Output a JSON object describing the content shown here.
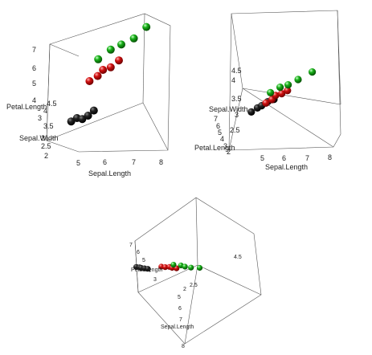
{
  "colors": {
    "series": [
      "#101010",
      "#c81010",
      "#10a010"
    ],
    "highlight": "#ffffff",
    "box": "#555555"
  },
  "chart_data": [
    {
      "type": "scatter",
      "axes": [
        "Sepal.Length",
        "Petal.Length",
        "Sepal.Width"
      ],
      "axis_labels": {
        "x": "Sepal.Length",
        "y": "Petal.Length",
        "z": "Sepal.Width"
      },
      "xticks": [
        "5",
        "6",
        "7",
        "8"
      ],
      "yticks": [
        "3",
        "4",
        "5",
        "6",
        "7"
      ],
      "zticks": [
        "2",
        "2.5",
        "3",
        "3.5",
        "4",
        "4.5"
      ],
      "series": [
        {
          "points": [
            [
              4.6,
              1.4,
              3.1
            ],
            [
              4.8,
              1.5,
              3.3
            ],
            [
              5.0,
              1.4,
              3.4
            ],
            [
              5.2,
              1.5,
              3.6
            ],
            [
              5.4,
              1.7,
              3.8
            ]
          ]
        },
        {
          "points": [
            [
              5.5,
              4.0,
              2.4
            ],
            [
              5.8,
              4.2,
              2.6
            ],
            [
              6.0,
              4.5,
              2.7
            ],
            [
              6.3,
              4.6,
              2.8
            ],
            [
              6.6,
              4.9,
              3.0
            ]
          ]
        },
        {
          "points": [
            [
              5.8,
              5.1,
              2.7
            ],
            [
              6.3,
              5.6,
              2.8
            ],
            [
              6.7,
              5.8,
              3.0
            ],
            [
              7.2,
              6.1,
              3.1
            ],
            [
              7.7,
              6.7,
              3.2
            ]
          ]
        }
      ]
    },
    {
      "type": "scatter",
      "axes": [
        "Sepal.Length",
        "Sepal.Width",
        "Petal.Length"
      ],
      "axis_labels": {
        "x": "Sepal.Length",
        "y": "Sepal.Width",
        "z": "Petal.Length"
      },
      "xticks": [
        "5",
        "6",
        "7",
        "8"
      ],
      "yticks": [
        "2.5",
        "3",
        "3.5",
        "4",
        "4.5"
      ],
      "zticks": [
        "2",
        "3",
        "4",
        "5",
        "6",
        "7"
      ],
      "series": [
        {
          "points": [
            [
              4.6,
              3.1,
              1.4
            ],
            [
              4.9,
              3.4,
              1.5
            ],
            [
              5.1,
              3.6,
              1.5
            ],
            [
              5.4,
              3.9,
              1.6
            ],
            [
              5.7,
              4.1,
              1.6
            ]
          ]
        },
        {
          "points": [
            [
              5.5,
              2.4,
              4.0
            ],
            [
              5.8,
              2.6,
              4.2
            ],
            [
              6.0,
              2.8,
              4.5
            ],
            [
              6.3,
              2.9,
              4.6
            ],
            [
              6.6,
              3.0,
              4.9
            ]
          ]
        },
        {
          "points": [
            [
              5.8,
              2.7,
              5.1
            ],
            [
              6.3,
              2.9,
              5.6
            ],
            [
              6.7,
              3.0,
              5.8
            ],
            [
              7.2,
              3.3,
              6.1
            ],
            [
              7.9,
              3.8,
              6.4
            ]
          ]
        }
      ]
    },
    {
      "type": "scatter",
      "axes": [
        "Sepal.Length",
        "Petal.Length",
        "Sepal.Width"
      ],
      "axis_labels": {
        "x": "Sepal.Length",
        "y": "Petal.Length",
        "z": ""
      },
      "xticks": [
        "5",
        "6",
        "7",
        "8"
      ],
      "yticks": [
        "2",
        "3",
        "4",
        "5",
        "6",
        "7"
      ],
      "zticks": [
        "2.5",
        "4.5"
      ],
      "series": [
        {
          "points": [
            [
              4.6,
              1.4,
              3.1
            ],
            [
              4.9,
              1.5,
              3.4
            ],
            [
              5.1,
              1.5,
              3.6
            ],
            [
              5.4,
              1.6,
              3.9
            ],
            [
              5.7,
              1.7,
              4.2
            ]
          ]
        },
        {
          "points": [
            [
              5.5,
              4.0,
              2.4
            ],
            [
              5.8,
              4.2,
              2.6
            ],
            [
              6.0,
              4.5,
              2.8
            ],
            [
              6.3,
              4.6,
              2.9
            ],
            [
              6.6,
              4.9,
              3.0
            ]
          ]
        },
        {
          "points": [
            [
              5.8,
              5.1,
              2.7
            ],
            [
              6.3,
              5.6,
              2.9
            ],
            [
              6.7,
              5.8,
              3.0
            ],
            [
              7.2,
              6.1,
              3.3
            ],
            [
              7.7,
              6.7,
              3.6
            ]
          ]
        }
      ]
    }
  ]
}
